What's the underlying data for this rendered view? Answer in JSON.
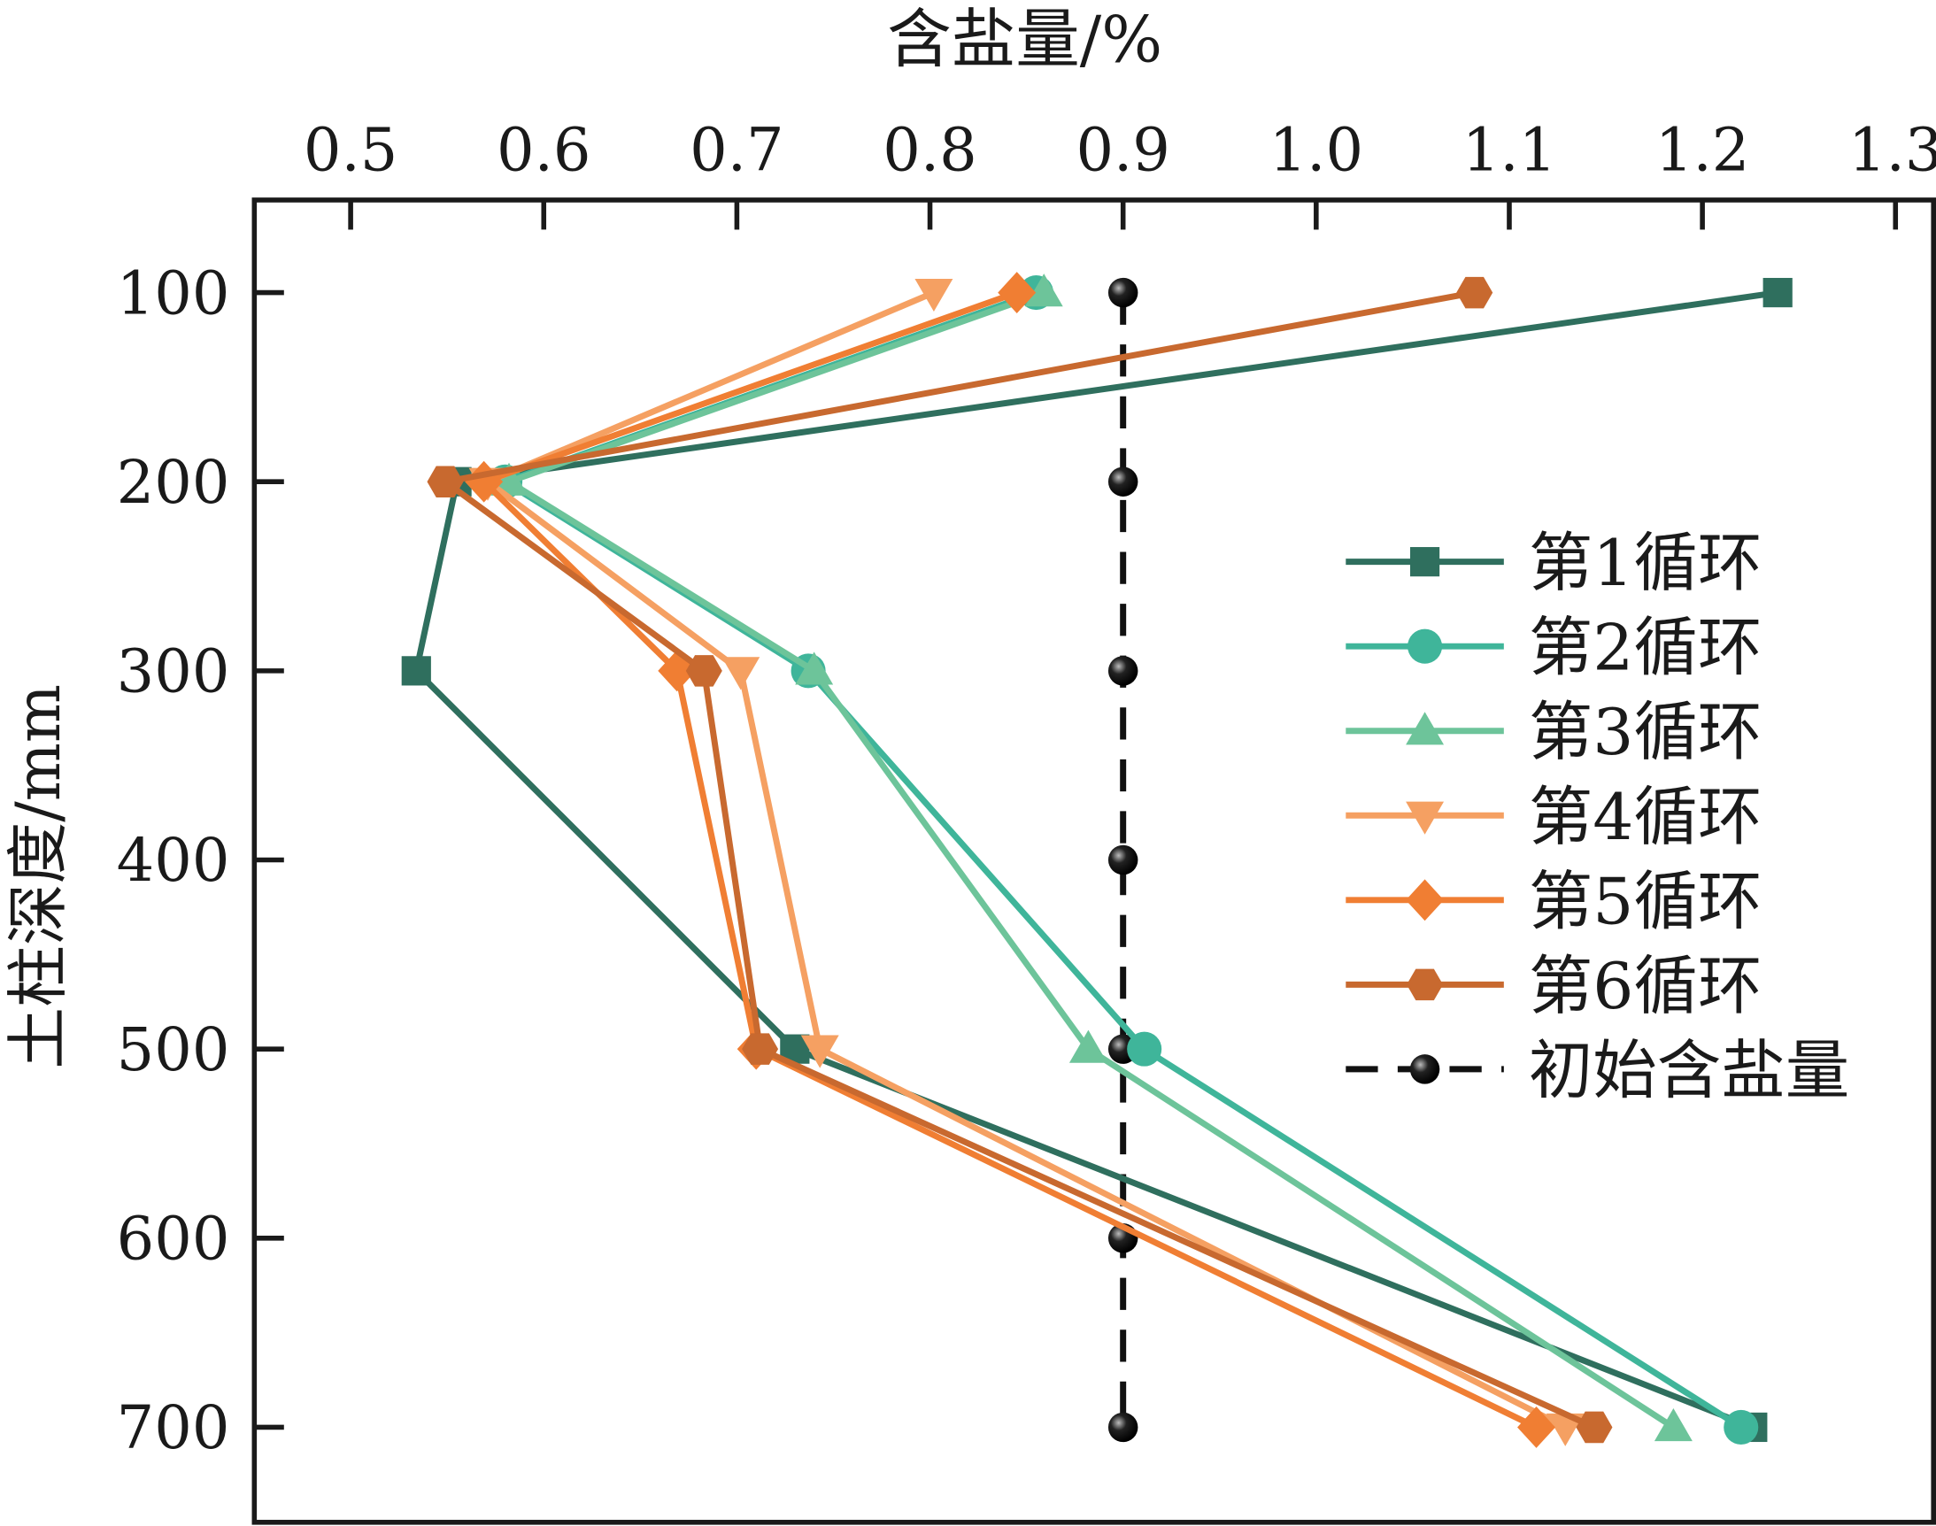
{
  "chart_data": {
    "type": "line",
    "title": "",
    "xlabel": "含盐量/%",
    "ylabel": "土柱深度/mm",
    "xlim": [
      0.45,
      1.3
    ],
    "ylim": [
      50,
      750
    ],
    "x_axis_position": "top",
    "y_axis_inverted": true,
    "xticks": [
      "0.5",
      "0.6",
      "0.7",
      "0.8",
      "0.9",
      "1.0",
      "1.1",
      "1.2",
      "1.3"
    ],
    "yticks": [
      "100",
      "200",
      "300",
      "400",
      "500",
      "600",
      "700"
    ],
    "grid": false,
    "legend_position": "right",
    "depths": [
      100,
      200,
      300,
      500,
      700
    ],
    "series": [
      {
        "name": "第1循环",
        "color": "#2f6f5e",
        "marker": "square",
        "values": [
          1.239,
          0.555,
          0.534,
          0.73,
          1.226
        ]
      },
      {
        "name": "第2循环",
        "color": "#3fb59a",
        "marker": "circle",
        "values": [
          0.855,
          0.58,
          0.737,
          0.911,
          1.22
        ]
      },
      {
        "name": "第3循环",
        "color": "#6dc49a",
        "marker": "triangle-up",
        "values": [
          0.859,
          0.582,
          0.74,
          0.882,
          1.185
        ]
      },
      {
        "name": "第4循环",
        "color": "#f5a062",
        "marker": "triangle-down",
        "values": [
          0.802,
          0.571,
          0.702,
          0.743,
          1.129
        ]
      },
      {
        "name": "第5循环",
        "color": "#f07e33",
        "marker": "diamond",
        "values": [
          0.845,
          0.569,
          0.669,
          0.71,
          1.114
        ]
      },
      {
        "name": "第6循环",
        "color": "#c8692f",
        "marker": "hexagon",
        "values": [
          1.082,
          0.549,
          0.683,
          0.712,
          1.144
        ]
      }
    ],
    "reference": {
      "name": "初始含盐量",
      "color": "#111111",
      "marker": "sphere",
      "line": "dashed",
      "x": 0.9,
      "depths": [
        100,
        200,
        300,
        400,
        500,
        600,
        700
      ]
    }
  }
}
